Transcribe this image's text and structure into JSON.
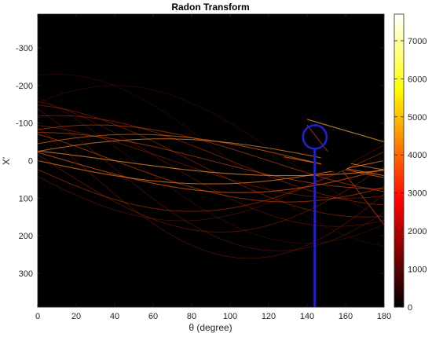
{
  "chart_data": {
    "type": "heatmap",
    "title": "Radon Transform",
    "xlabel": "θ (degree)",
    "ylabel": "X'",
    "xlim": [
      0,
      180
    ],
    "ylim": [
      -390,
      390
    ],
    "y_reversed": true,
    "xticks": [
      0,
      20,
      40,
      60,
      80,
      100,
      120,
      140,
      160,
      180
    ],
    "yticks": [
      -300,
      -200,
      -100,
      0,
      100,
      200,
      300
    ],
    "colorbar": {
      "colormap": "hot",
      "min": 0,
      "max": 7700,
      "ticks": [
        0,
        1000,
        2000,
        3000,
        4000,
        5000,
        6000,
        7000
      ]
    },
    "annotations": [
      {
        "type": "circle",
        "theta": 144,
        "x_prime": -63,
        "color": "#1f1fdd"
      },
      {
        "type": "vertical_line",
        "theta": 144,
        "from_x_prime": -63,
        "to_x_prime": 390,
        "color": "#1f1fdd"
      }
    ],
    "grid": false
  }
}
